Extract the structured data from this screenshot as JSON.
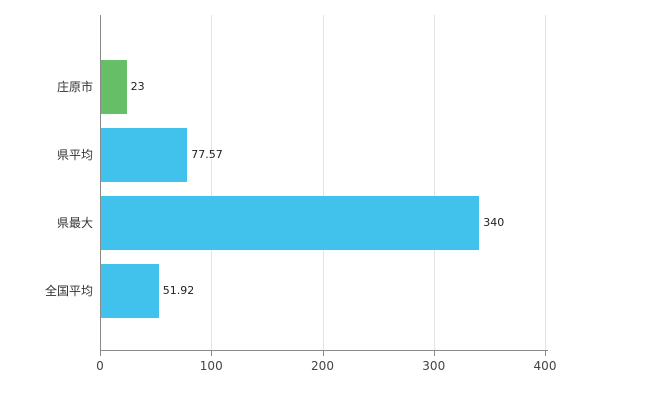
{
  "chart_data": {
    "type": "bar",
    "orientation": "horizontal",
    "title": "",
    "categories": [
      "庄原市",
      "県平均",
      "県最大",
      "全国平均"
    ],
    "values": [
      23,
      77.57,
      340,
      51.92
    ],
    "value_labels": [
      "23",
      "77.57",
      "340",
      "51.92"
    ],
    "bar_colors": [
      "#66bf66",
      "#41c2ec",
      "#41c2ec",
      "#41c2ec"
    ],
    "xlabel": "",
    "ylabel": "",
    "xlim": [
      0,
      400
    ],
    "xticks": [
      0,
      100,
      200,
      300,
      400
    ],
    "xtick_labels": [
      "0",
      "100",
      "200",
      "300",
      "400"
    ],
    "grid": true,
    "legend": false,
    "colors": {
      "axis": "#8a8a8a",
      "gridline": "#e3e3e3",
      "background": "#ffffff"
    }
  }
}
